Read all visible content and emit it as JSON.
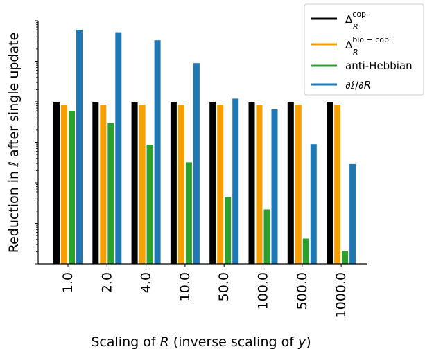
{
  "chart_data": {
    "type": "bar",
    "title": "",
    "xlabel": "Scaling of R (inverse scaling of y)",
    "ylabel": "Reduction in ℓ after single update",
    "yscale": "log",
    "ylim": [
      0.0001,
      100
    ],
    "grid": false,
    "legend_position": "top-right",
    "categories": [
      "1.0",
      "2.0",
      "4.0",
      "10.0",
      "50.0",
      "100.0",
      "500.0",
      "1000.0"
    ],
    "series": [
      {
        "name": "Δ_R^copi",
        "color": "#000000",
        "values": [
          1.0,
          1.0,
          1.0,
          1.0,
          1.0,
          1.0,
          1.0,
          1.0
        ]
      },
      {
        "name": "Δ_R^bio-copi",
        "color": "#f5a000",
        "values": [
          0.85,
          0.85,
          0.85,
          0.85,
          0.85,
          0.85,
          0.85,
          0.85
        ]
      },
      {
        "name": "anti-Hebbian",
        "color": "#2ca02c",
        "values": [
          0.6,
          0.3,
          0.087,
          0.032,
          0.0045,
          0.0022,
          0.00042,
          0.00021
        ]
      },
      {
        "name": "∂ℓ/∂R",
        "color": "#1f77b4",
        "values": [
          60,
          52,
          33,
          9.0,
          1.2,
          0.65,
          0.09,
          0.029
        ]
      }
    ]
  }
}
